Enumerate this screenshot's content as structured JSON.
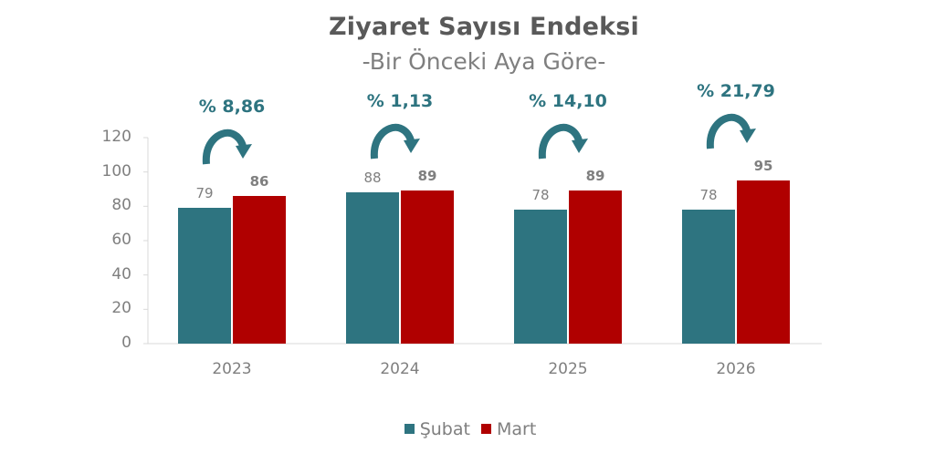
{
  "chart_data": {
    "type": "bar",
    "title": "Ziyaret Sayısı Endeksi",
    "subtitle": "-Bir Önceki Aya Göre-",
    "categories": [
      "2023",
      "2024",
      "2025",
      "2026"
    ],
    "series": [
      {
        "name": "Şubat",
        "color": "#2e7480",
        "values": [
          79,
          88,
          78,
          78
        ]
      },
      {
        "name": "Mart",
        "color": "#b00000",
        "values": [
          86,
          89,
          89,
          95
        ]
      }
    ],
    "annotations": [
      "% 8,86",
      "% 1,13",
      "% 14,10",
      "% 21,79"
    ],
    "xlabel": "",
    "ylabel": "",
    "ylim": [
      0,
      120
    ],
    "yticks": [
      "120",
      "100",
      "80",
      "60",
      "40",
      "20",
      "0"
    ],
    "grid": false,
    "legend_position": "bottom"
  },
  "labels": {
    "title": "Ziyaret Sayısı Endeksi",
    "subtitle": "-Bir Önceki Aya Göre-",
    "legend": [
      "Şubat",
      "Mart"
    ]
  }
}
